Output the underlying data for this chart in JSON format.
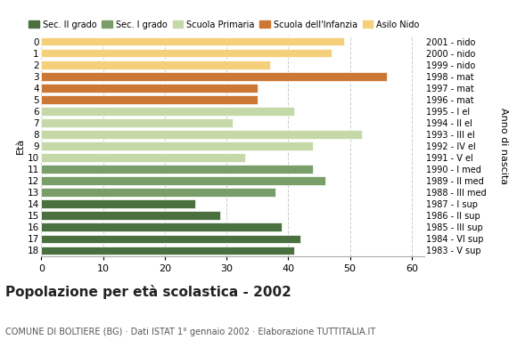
{
  "ages": [
    18,
    17,
    16,
    15,
    14,
    13,
    12,
    11,
    10,
    9,
    8,
    7,
    6,
    5,
    4,
    3,
    2,
    1,
    0
  ],
  "values": [
    41,
    42,
    39,
    29,
    25,
    38,
    46,
    44,
    33,
    44,
    52,
    31,
    41,
    35,
    35,
    56,
    37,
    47,
    49
  ],
  "anno_nascita": [
    "1983 - V sup",
    "1984 - VI sup",
    "1985 - III sup",
    "1986 - II sup",
    "1987 - I sup",
    "1988 - III med",
    "1989 - II med",
    "1990 - I med",
    "1991 - V el",
    "1992 - IV el",
    "1993 - III el",
    "1994 - II el",
    "1995 - I el",
    "1996 - mat",
    "1997 - mat",
    "1998 - mat",
    "1999 - nido",
    "2000 - nido",
    "2001 - nido"
  ],
  "age_colors": {
    "18": "#4a7040",
    "17": "#4a7040",
    "16": "#4a7040",
    "15": "#4a7040",
    "14": "#4a7040",
    "13": "#7a9e6a",
    "12": "#7a9e6a",
    "11": "#7a9e6a",
    "10": "#c5d9a8",
    "9": "#c5d9a8",
    "8": "#c5d9a8",
    "7": "#c5d9a8",
    "6": "#c5d9a8",
    "5": "#cc7733",
    "4": "#cc7733",
    "3": "#cc7733",
    "2": "#f5d07a",
    "1": "#f5d07a",
    "0": "#f5d07a"
  },
  "legend_colors": {
    "Sec. II grado": "#4a7040",
    "Sec. I grado": "#7a9e6a",
    "Scuola Primaria": "#c5d9a8",
    "Scuola dell'Infanzia": "#cc7733",
    "Asilo Nido": "#f5d07a"
  },
  "title": "Popolazione per età scolastica - 2002",
  "subtitle": "COMUNE DI BOLTIERE (BG) · Dati ISTAT 1° gennaio 2002 · Elaborazione TUTTITALIA.IT",
  "ylabel": "Età",
  "right_ylabel": "Anno di nascita",
  "xlim": [
    0,
    62
  ],
  "xticks": [
    0,
    10,
    20,
    30,
    40,
    50,
    60
  ],
  "background_color": "#ffffff",
  "grid_color": "#cccccc",
  "bar_height": 0.75
}
